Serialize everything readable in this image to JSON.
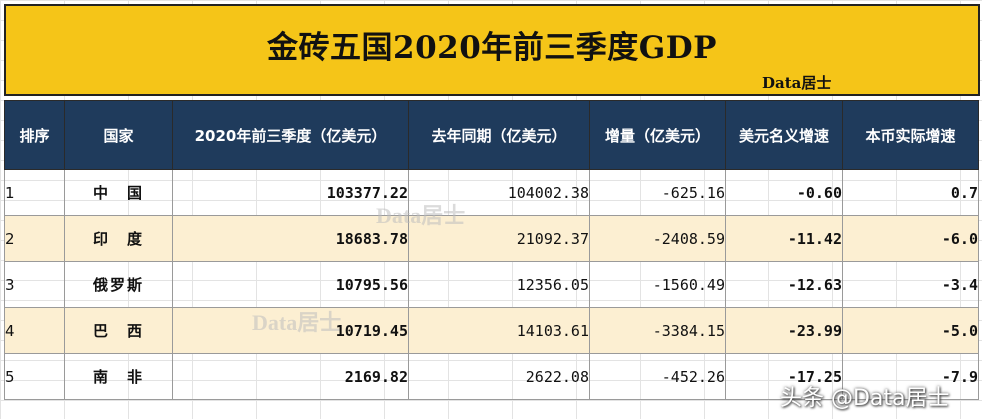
{
  "title": "金砖五国2020年前三季度GDP",
  "brand": "Data居士",
  "watermark": "Data居士",
  "footer_watermark": "头条 @Data居士",
  "table": {
    "headers": [
      "排序",
      "国家",
      "2020年前三季度（亿美元）",
      "去年同期（亿美元）",
      "增量（亿美元）",
      "美元名义增速",
      "本币实际增速"
    ],
    "rows": [
      {
        "rank": "1",
        "country": "中　国",
        "gdp2020": "103377.22",
        "gdp2019": "104002.38",
        "increment": "-625.16",
        "usd_growth": "-0.60",
        "local_growth": "0.7"
      },
      {
        "rank": "2",
        "country": "印　度",
        "gdp2020": "18683.78",
        "gdp2019": "21092.37",
        "increment": "-2408.59",
        "usd_growth": "-11.42",
        "local_growth": "-6.0"
      },
      {
        "rank": "3",
        "country": "俄罗斯",
        "gdp2020": "10795.56",
        "gdp2019": "12356.05",
        "increment": "-1560.49",
        "usd_growth": "-12.63",
        "local_growth": "-3.4"
      },
      {
        "rank": "4",
        "country": "巴　西",
        "gdp2020": "10719.45",
        "gdp2019": "14103.61",
        "increment": "-3384.15",
        "usd_growth": "-23.99",
        "local_growth": "-5.0"
      },
      {
        "rank": "5",
        "country": "南　非",
        "gdp2020": "2169.82",
        "gdp2019": "2622.08",
        "increment": "-452.26",
        "usd_growth": "-17.25",
        "local_growth": "-7.9"
      }
    ]
  },
  "colors": {
    "header_bg": "#1f3b5c",
    "title_bg": "#f5c518",
    "alt_row": "#fcefd2",
    "negative": "#e00000"
  }
}
